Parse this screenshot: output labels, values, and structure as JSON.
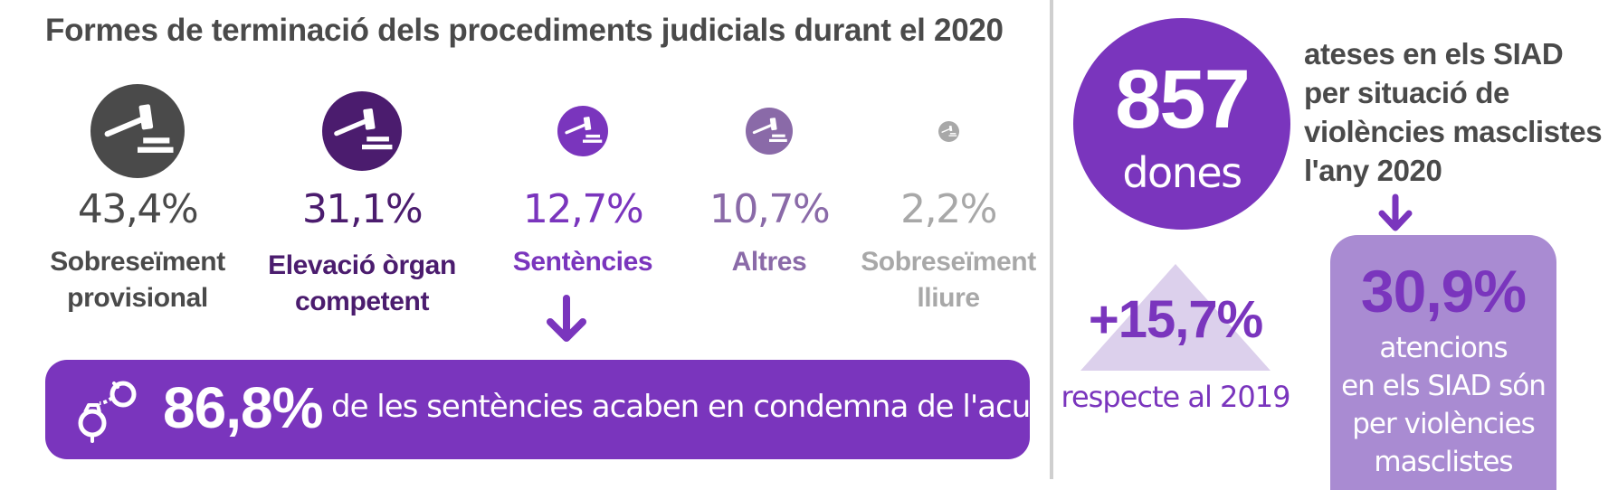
{
  "chart_data": {
    "type": "bar",
    "title": "Formes de terminació dels procediments judicials durant el 2020",
    "categories": [
      {
        "label": [
          "Sobreseïment",
          "provisional"
        ],
        "value_text": "43,4%",
        "color": "#4a4a4a"
      },
      {
        "label": [
          "Elevació òrgan",
          "competent"
        ],
        "value_text": "31,1%",
        "color": "#4b1c6e"
      },
      {
        "label": [
          "Sentències"
        ],
        "value_text": "12,7%",
        "color": "#7a35bd"
      },
      {
        "label": [
          "Altres"
        ],
        "value_text": "10,7%",
        "color": "#8a6aa8"
      },
      {
        "label": [
          "Sobreseïment",
          "lliure"
        ],
        "value_text": "2,2%",
        "color": "#a8a8a8"
      }
    ],
    "values": [
      43.4,
      31.1,
      12.7,
      10.7,
      2.2
    ],
    "unit": "%"
  },
  "sentences": {
    "value": "86,8%",
    "text": "de les sentències acaben en condemna de l'acusat",
    "icon": "handcuffs-icon",
    "color": "#7a35bd"
  },
  "women": {
    "count": "857",
    "unit": "dones",
    "description": [
      "ateses en els SIAD",
      "per situació de",
      "violències masclistes",
      "l'any 2020"
    ]
  },
  "change": {
    "value": "+15,7%",
    "reference": "respecte al 2019"
  },
  "siad": {
    "value": "30,9%",
    "text": [
      "atencions",
      "en els SIAD són",
      "per violències",
      "masclistes"
    ]
  },
  "colors": {
    "accent": "#7a35bd",
    "dark_text": "#4a4a4a",
    "light_box": "#a98bd2",
    "triangle": "#dcd0ec",
    "divider": "#cfcfcf"
  }
}
